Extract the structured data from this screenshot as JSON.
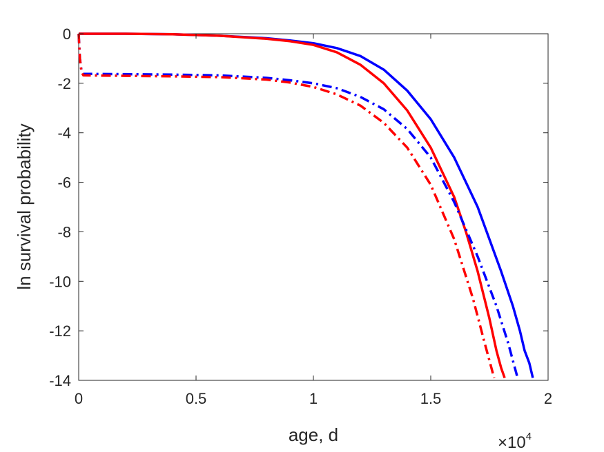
{
  "chart_data": {
    "type": "line",
    "xlabel": "age, d",
    "ylabel": "ln survival probability",
    "x_multiplier": "×10",
    "x_exponent": "4",
    "xlim": [
      0,
      20000
    ],
    "ylim": [
      -14,
      0
    ],
    "xticks": [
      0,
      5000,
      10000,
      15000,
      20000
    ],
    "xtick_labels": [
      "0",
      "0.5",
      "1",
      "1.5",
      "2"
    ],
    "yticks": [
      0,
      -2,
      -4,
      -6,
      -8,
      -10,
      -12,
      -14
    ],
    "ytick_labels": [
      "0",
      "-2",
      "-4",
      "-6",
      "-8",
      "-10",
      "-12",
      "-14"
    ],
    "grid": false,
    "series": [
      {
        "color": "#0000ff",
        "dash": "solid",
        "x": [
          0,
          2000,
          4000,
          6000,
          8000,
          9000,
          10000,
          11000,
          12000,
          13000,
          14000,
          15000,
          16000,
          17000,
          18000,
          18500,
          18800,
          19000,
          19200,
          19350
        ],
        "y": [
          0,
          0,
          -0.02,
          -0.08,
          -0.18,
          -0.27,
          -0.38,
          -0.58,
          -0.9,
          -1.45,
          -2.3,
          -3.45,
          -5.0,
          -7.0,
          -9.6,
          -11.0,
          -12.0,
          -12.8,
          -13.3,
          -13.9
        ]
      },
      {
        "color": "#ff0000",
        "dash": "solid",
        "x": [
          0,
          2000,
          4000,
          6000,
          8000,
          9000,
          10000,
          11000,
          12000,
          13000,
          14000,
          15000,
          16000,
          16500,
          17000,
          17500,
          17800,
          18000,
          18150
        ],
        "y": [
          0,
          0,
          -0.02,
          -0.08,
          -0.2,
          -0.3,
          -0.45,
          -0.75,
          -1.25,
          -2.0,
          -3.1,
          -4.6,
          -6.6,
          -8.0,
          -9.6,
          -11.5,
          -12.8,
          -13.5,
          -13.9
        ]
      },
      {
        "color": "#0000ff",
        "dash": "dashdot",
        "x": [
          0,
          50,
          120,
          200,
          2000,
          4000,
          6000,
          8000,
          9000,
          10000,
          11000,
          12000,
          13000,
          14000,
          15000,
          16000,
          17000,
          17800,
          18300,
          18700
        ],
        "y": [
          0,
          -1.0,
          -1.5,
          -1.62,
          -1.63,
          -1.65,
          -1.68,
          -1.78,
          -1.88,
          -2.0,
          -2.2,
          -2.55,
          -3.05,
          -3.85,
          -5.0,
          -6.8,
          -9.0,
          -11.0,
          -12.5,
          -13.9
        ]
      },
      {
        "color": "#ff0000",
        "dash": "dashdot",
        "x": [
          0,
          50,
          120,
          200,
          2000,
          4000,
          6000,
          8000,
          9000,
          10000,
          11000,
          12000,
          13000,
          14000,
          15000,
          16000,
          16800,
          17300,
          17700
        ],
        "y": [
          0,
          -1.0,
          -1.55,
          -1.68,
          -1.7,
          -1.72,
          -1.75,
          -1.85,
          -1.97,
          -2.15,
          -2.45,
          -2.9,
          -3.6,
          -4.6,
          -6.1,
          -8.3,
          -10.7,
          -12.5,
          -13.9
        ]
      }
    ]
  }
}
